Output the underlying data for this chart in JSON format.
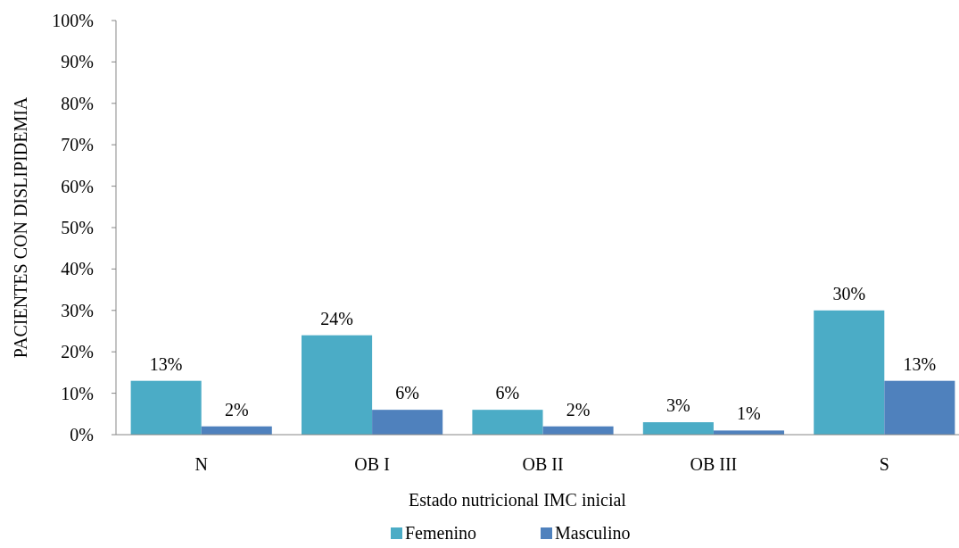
{
  "chart_data": {
    "type": "bar",
    "xlabel": "Estado nutricional IMC inicial",
    "ylabel": "PACIENTES CON DISLIPIDEMIA",
    "categories": [
      "N",
      "OB I",
      "OB II",
      "OB III",
      "S"
    ],
    "series": [
      {
        "name": "Femenino",
        "color": "#4bacc6",
        "values": [
          13,
          24,
          6,
          3,
          30
        ],
        "value_labels": [
          "13%",
          "24%",
          "6%",
          "3%",
          "30%"
        ]
      },
      {
        "name": "Masculino",
        "color": "#4f81bd",
        "values": [
          2,
          6,
          2,
          1,
          13
        ],
        "value_labels": [
          "2%",
          "6%",
          "2%",
          "1%",
          "13%"
        ]
      }
    ],
    "ylim": [
      0,
      100
    ],
    "yticks": [
      {
        "value": 0,
        "label": "0%"
      },
      {
        "value": 10,
        "label": "10%"
      },
      {
        "value": 20,
        "label": "20%"
      },
      {
        "value": 30,
        "label": "30%"
      },
      {
        "value": 40,
        "label": "40%"
      },
      {
        "value": 50,
        "label": "50%"
      },
      {
        "value": 60,
        "label": "60%"
      },
      {
        "value": 70,
        "label": "70%"
      },
      {
        "value": 80,
        "label": "80%"
      },
      {
        "value": 90,
        "label": "90%"
      },
      {
        "value": 100,
        "label": "100%"
      }
    ],
    "grid": false,
    "legend": "bottom"
  }
}
